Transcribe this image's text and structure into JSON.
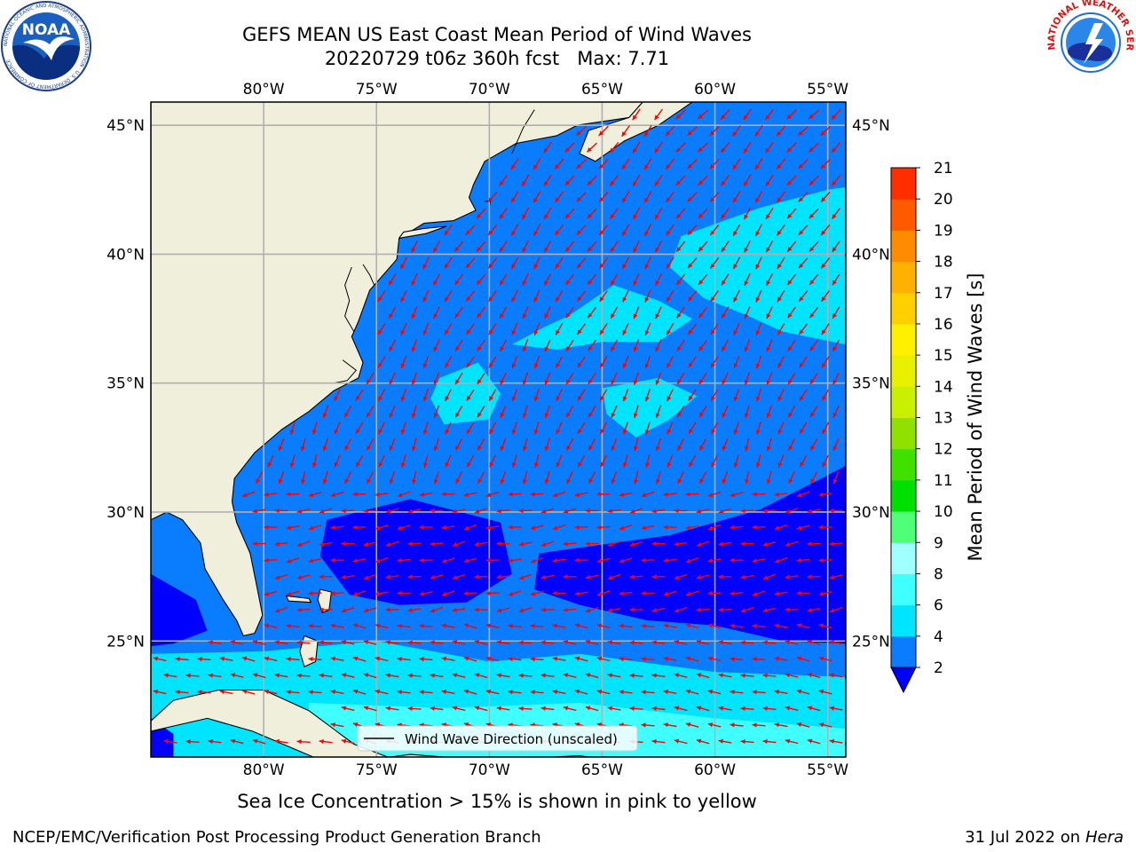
{
  "title": {
    "line1": "GEFS MEAN US East Coast Mean Period of Wind Waves",
    "line2": "20220729 t06z 360h fcst   Max: 7.71"
  },
  "footer_note": "Sea Ice Concentration > 15% is shown in pink to yellow",
  "credit": "NCEP/EMC/Verification Post Processing Product Generation Branch",
  "run_date": {
    "prefix": "31 Jul 2022 on ",
    "machine": "Hera"
  },
  "legend": {
    "label": "Wind Wave Direction (unscaled)"
  },
  "logos": {
    "noaa": {
      "text": "NOAA",
      "ring_text": "NATIONAL OCEANIC AND ATMOSPHERIC ADMINISTRATION · U.S. DEPARTMENT OF COMMERCE"
    },
    "nws": {
      "ring_text": "NATIONAL WEATHER SERVICE"
    }
  },
  "map": {
    "lon_range": [
      -85,
      -54.2
    ],
    "lat_range": [
      20.5,
      45.9
    ],
    "top_lon_labels": [
      "80°W",
      "75°W",
      "70°W",
      "65°W",
      "60°W",
      "55°W"
    ],
    "bottom_lon_labels": [
      "80°W",
      "75°W",
      "70°W",
      "65°W",
      "60°W",
      "55°W"
    ],
    "left_lat_labels": [
      "45°N",
      "40°N",
      "35°N",
      "30°N",
      "25°N"
    ],
    "right_lat_labels": [
      "45°N",
      "40°N",
      "35°N",
      "30°N",
      "25°N"
    ],
    "land_color": "#efefdc",
    "grid_color": "#b0b0b0",
    "arrow_color": "#ff0000"
  },
  "colorbar": {
    "label": "Mean Period of Wind Waves [s]",
    "ticks": [
      "2",
      "4",
      "6",
      "8",
      "9",
      "10",
      "11",
      "12",
      "13",
      "14",
      "15",
      "16",
      "17",
      "18",
      "19",
      "20",
      "21"
    ],
    "colors": [
      "#0a7dff",
      "#00e5ff",
      "#40ffff",
      "#a0ffff",
      "#50ff78",
      "#00e000",
      "#40e000",
      "#90e000",
      "#c8f000",
      "#e8f000",
      "#fff000",
      "#ffd000",
      "#ffb000",
      "#ff8c00",
      "#ff5a00",
      "#ff2d00"
    ],
    "under_color": "#0000ff"
  }
}
